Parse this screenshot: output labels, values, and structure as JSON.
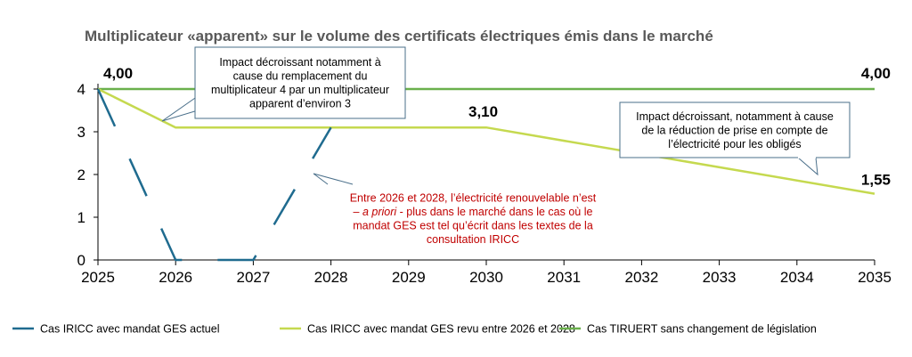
{
  "chart_data": {
    "type": "line",
    "title": "Multiplicateur «apparent»  sur le volume des certificats électriques émis dans le marché",
    "x": [
      2025,
      2026,
      2027,
      2028,
      2029,
      2030,
      2031,
      2032,
      2033,
      2034,
      2035
    ],
    "x_tick_labels": [
      "2025",
      "2026",
      "2027",
      "2028",
      "2029",
      "2030",
      "2031",
      "2032",
      "2033",
      "2034",
      "2035"
    ],
    "y_tick_labels": [
      "0",
      "1",
      "2",
      "3",
      "4"
    ],
    "ylim": [
      0,
      4
    ],
    "xlim": [
      2025,
      2035
    ],
    "grid": false,
    "legend_position": "bottom",
    "series": [
      {
        "name": "Cas IRICC avec mandat GES actuel",
        "color": "#1f6b8f",
        "style": "dashed",
        "points": [
          [
            2025,
            4.0
          ],
          [
            2026,
            0
          ],
          [
            2027,
            0
          ],
          [
            2028,
            3.1
          ]
        ]
      },
      {
        "name": "Cas IRICC avec mandat GES revu entre 2026 et 2028",
        "color": "#c5d94f",
        "style": "solid",
        "points": [
          [
            2025,
            4.0
          ],
          [
            2026,
            3.1
          ],
          [
            2030,
            3.1
          ],
          [
            2035,
            1.55
          ]
        ]
      },
      {
        "name": "Cas TIRUERT sans changement de législation",
        "color": "#6ab04c",
        "style": "solid",
        "points": [
          [
            2025,
            4.0
          ],
          [
            2035,
            4.0
          ]
        ]
      }
    ],
    "data_labels": [
      {
        "x": 2025,
        "y": 4.0,
        "text": "4,00"
      },
      {
        "x": 2030,
        "y": 3.1,
        "text": "3,10"
      },
      {
        "x": 2035,
        "y": 4.0,
        "text": "4,00"
      },
      {
        "x": 2035,
        "y": 1.55,
        "text": "1,55"
      }
    ],
    "annotations": [
      {
        "lines": [
          "Impact décroissant notamment à",
          "cause du remplacement du",
          "multiplicateur 4 par un multiplicateur",
          "apparent d’environ 3"
        ],
        "color": "#000000"
      },
      {
        "lines": [
          "Impact décroissant, notamment à cause",
          "de la réduction de prise en compte de",
          "l’électricité pour les obligés"
        ],
        "color": "#000000"
      },
      {
        "lines": [
          "Entre 2026 et 2028, l’électricité renouvelable n’est",
          "– a priori - plus dans le  marché dans le cas où le",
          "mandat GES est tel qu’écrit dans les textes de la",
          "consultation IRICC"
        ],
        "color": "#c00000"
      }
    ]
  }
}
